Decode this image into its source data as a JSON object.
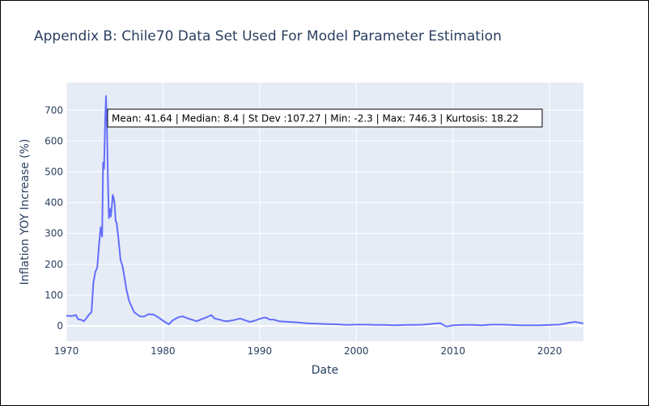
{
  "chart_data": {
    "type": "line",
    "title": "Appendix B: Chile70 Data Set Used For Model Parameter Estimation",
    "xlabel": "Date",
    "ylabel": "Inflation YOY Increase (%)",
    "xlim": [
      1970,
      2023.5
    ],
    "ylim": [
      -50,
      790
    ],
    "x_ticks": [
      1970,
      1980,
      1990,
      2000,
      2010,
      2020
    ],
    "y_ticks": [
      0,
      100,
      200,
      300,
      400,
      500,
      600,
      700
    ],
    "grid": true,
    "line_color": "#636efa",
    "plot_background": "#e5ecf6",
    "annotation": "Mean: 41.64 | Median: 8.4 | St Dev :107.27 | Min: -2.3 | Max: 746.3 | Kurtosis: 18.22",
    "series": [
      {
        "x": [
          1970.0,
          1970.5,
          1971.0,
          1971.2,
          1971.5,
          1971.8,
          1972.0,
          1972.3,
          1972.6,
          1972.8,
          1973.0,
          1973.2,
          1973.4,
          1973.55,
          1973.7,
          1973.8,
          1973.9,
          1974.0,
          1974.1,
          1974.2,
          1974.3,
          1974.4,
          1974.5,
          1974.6,
          1974.7,
          1974.8,
          1974.9,
          1975.0,
          1975.1,
          1975.2,
          1975.4,
          1975.6,
          1975.8,
          1976.0,
          1976.2,
          1976.5,
          1976.8,
          1977.0,
          1977.3,
          1977.6,
          1978.0,
          1978.5,
          1979.0,
          1979.5,
          1980.0,
          1980.6,
          1981.0,
          1981.5,
          1982.0,
          1982.6,
          1983.0,
          1983.5,
          1984.0,
          1984.5,
          1985.0,
          1985.3,
          1985.6,
          1985.9,
          1986.3,
          1986.6,
          1987.0,
          1987.5,
          1988.0,
          1988.5,
          1989.0,
          1989.5,
          1990.0,
          1990.5,
          1990.8,
          1991.0,
          1991.5,
          1992.0,
          1993.0,
          1994.0,
          1995.0,
          1996.0,
          1997.0,
          1998.0,
          1999.0,
          2000.0,
          2001.0,
          2002.0,
          2003.0,
          2004.0,
          2005.0,
          2006.0,
          2007.0,
          2008.0,
          2008.7,
          2009.3,
          2010.0,
          2011.0,
          2012.0,
          2013.0,
          2014.0,
          2015.0,
          2016.0,
          2017.0,
          2018.0,
          2019.0,
          2020.0,
          2021.0,
          2022.0,
          2022.6,
          2023.0,
          2023.5
        ],
        "y": [
          33,
          32,
          35,
          22,
          20,
          15,
          22,
          35,
          45,
          140,
          175,
          190,
          270,
          320,
          290,
          530,
          510,
          655,
          746,
          640,
          470,
          350,
          380,
          355,
          385,
          425,
          415,
          395,
          340,
          335,
          280,
          215,
          195,
          160,
          120,
          80,
          60,
          45,
          38,
          31,
          30,
          38,
          37,
          28,
          17,
          5,
          18,
          27,
          31,
          24,
          20,
          15,
          22,
          28,
          35,
          25,
          22,
          20,
          16,
          15,
          17,
          20,
          24,
          18,
          13,
          17,
          23,
          27,
          25,
          21,
          20,
          15,
          13,
          11,
          8,
          7,
          6,
          5,
          3,
          4,
          4,
          3,
          3,
          2,
          3,
          3,
          4,
          7,
          9,
          -2.3,
          2,
          3,
          3,
          2,
          4,
          4,
          3,
          2,
          2,
          2,
          3,
          4,
          10,
          13,
          11,
          8
        ]
      }
    ]
  }
}
